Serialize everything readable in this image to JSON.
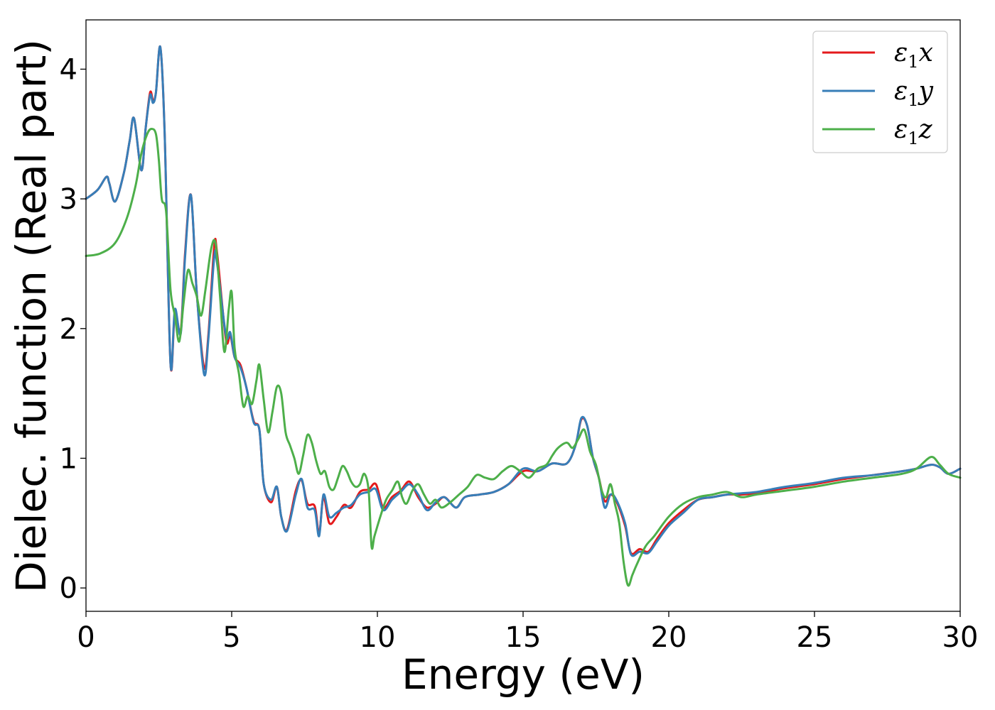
{
  "chart_data": {
    "type": "line",
    "xlabel": "Energy (eV)",
    "ylabel": "Dielec. function (Real part)",
    "xlim": [
      0,
      30
    ],
    "ylim": [
      -0.18,
      4.38
    ],
    "xticks": [
      0,
      5,
      10,
      15,
      20,
      25,
      30
    ],
    "yticks": [
      0,
      1,
      2,
      3,
      4
    ],
    "grid": false,
    "legend_position": "top-right",
    "series": [
      {
        "name": "ε₁x",
        "legend_symbol": "ε",
        "legend_sub": "1",
        "legend_var": "x",
        "color": "#e41a1c",
        "x": [
          0,
          0.4,
          0.7,
          0.8,
          1.0,
          1.3,
          1.5,
          1.65,
          1.9,
          2.05,
          2.2,
          2.3,
          2.4,
          2.55,
          2.7,
          2.9,
          3.05,
          3.25,
          3.4,
          3.6,
          3.8,
          4.05,
          4.2,
          4.4,
          4.5,
          4.8,
          4.95,
          5.1,
          5.3,
          5.5,
          5.75,
          5.95,
          6.1,
          6.35,
          6.55,
          6.7,
          6.9,
          7.2,
          7.4,
          7.6,
          7.85,
          8.0,
          8.15,
          8.35,
          8.6,
          8.85,
          9.1,
          9.4,
          9.7,
          9.95,
          10.2,
          10.5,
          10.8,
          11.1,
          11.4,
          11.7,
          12.0,
          12.3,
          12.7,
          13.0,
          13.5,
          14.0,
          14.5,
          15.0,
          15.5,
          16.0,
          16.5,
          16.8,
          17.0,
          17.2,
          17.4,
          17.6,
          17.8,
          18.0,
          18.2,
          18.5,
          18.7,
          19.0,
          19.3,
          19.6,
          20.0,
          20.5,
          21.0,
          21.5,
          22.0,
          22.5,
          23.0,
          23.5,
          24.0,
          25.0,
          26.0,
          27.0,
          28.0,
          28.5,
          29.0,
          29.3,
          29.6,
          30.0
        ],
        "y": [
          3.0,
          3.07,
          3.17,
          3.12,
          2.98,
          3.2,
          3.45,
          3.62,
          3.22,
          3.55,
          3.82,
          3.76,
          3.82,
          4.17,
          3.5,
          1.73,
          2.12,
          1.98,
          2.58,
          3.03,
          2.28,
          1.7,
          1.95,
          2.63,
          2.58,
          1.92,
          1.95,
          1.78,
          1.72,
          1.55,
          1.29,
          1.22,
          0.8,
          0.66,
          0.78,
          0.55,
          0.45,
          0.75,
          0.83,
          0.65,
          0.63,
          0.42,
          0.7,
          0.5,
          0.55,
          0.64,
          0.62,
          0.74,
          0.76,
          0.8,
          0.62,
          0.7,
          0.75,
          0.82,
          0.7,
          0.62,
          0.65,
          0.7,
          0.62,
          0.7,
          0.72,
          0.74,
          0.8,
          0.9,
          0.9,
          0.96,
          0.96,
          1.1,
          1.3,
          1.25,
          1.0,
          0.85,
          0.67,
          0.72,
          0.67,
          0.48,
          0.27,
          0.3,
          0.28,
          0.38,
          0.5,
          0.6,
          0.68,
          0.7,
          0.72,
          0.72,
          0.73,
          0.75,
          0.77,
          0.8,
          0.84,
          0.87,
          0.9,
          0.92,
          0.95,
          0.93,
          0.88,
          0.92
        ]
      },
      {
        "name": "ε₁y",
        "legend_symbol": "ε",
        "legend_sub": "1",
        "legend_var": "y",
        "color": "#377eb8",
        "x": [
          0,
          0.4,
          0.7,
          0.8,
          1.0,
          1.3,
          1.5,
          1.65,
          1.9,
          2.05,
          2.2,
          2.3,
          2.4,
          2.55,
          2.7,
          2.9,
          3.05,
          3.25,
          3.4,
          3.6,
          3.8,
          4.05,
          4.2,
          4.4,
          4.5,
          4.8,
          4.95,
          5.1,
          5.3,
          5.5,
          5.75,
          5.95,
          6.1,
          6.35,
          6.55,
          6.7,
          6.9,
          7.2,
          7.4,
          7.6,
          7.85,
          8.0,
          8.15,
          8.35,
          8.6,
          8.85,
          9.1,
          9.4,
          9.7,
          9.95,
          10.2,
          10.5,
          10.8,
          11.1,
          11.4,
          11.7,
          12.0,
          12.3,
          12.7,
          13.0,
          13.5,
          14.0,
          14.5,
          15.0,
          15.5,
          16.0,
          16.5,
          16.8,
          17.0,
          17.2,
          17.4,
          17.6,
          17.8,
          18.0,
          18.2,
          18.5,
          18.7,
          19.0,
          19.3,
          19.6,
          20.0,
          20.5,
          21.0,
          21.5,
          22.0,
          22.5,
          23.0,
          23.5,
          24.0,
          25.0,
          26.0,
          27.0,
          28.0,
          28.5,
          29.0,
          29.3,
          29.6,
          30.0
        ],
        "y": [
          3.0,
          3.07,
          3.17,
          3.12,
          2.98,
          3.2,
          3.45,
          3.62,
          3.22,
          3.55,
          3.8,
          3.74,
          3.82,
          4.17,
          3.5,
          1.73,
          2.15,
          1.96,
          2.55,
          3.03,
          2.28,
          1.65,
          1.92,
          2.55,
          2.5,
          1.95,
          1.97,
          1.78,
          1.7,
          1.55,
          1.28,
          1.22,
          0.8,
          0.68,
          0.78,
          0.55,
          0.44,
          0.72,
          0.84,
          0.62,
          0.6,
          0.4,
          0.72,
          0.55,
          0.58,
          0.62,
          0.64,
          0.72,
          0.74,
          0.76,
          0.6,
          0.68,
          0.74,
          0.8,
          0.72,
          0.6,
          0.66,
          0.7,
          0.62,
          0.7,
          0.72,
          0.74,
          0.8,
          0.92,
          0.9,
          0.96,
          0.96,
          1.1,
          1.31,
          1.25,
          1.0,
          0.85,
          0.62,
          0.72,
          0.68,
          0.5,
          0.26,
          0.28,
          0.27,
          0.36,
          0.48,
          0.58,
          0.68,
          0.7,
          0.72,
          0.73,
          0.74,
          0.76,
          0.78,
          0.81,
          0.85,
          0.87,
          0.9,
          0.92,
          0.95,
          0.93,
          0.88,
          0.92
        ]
      },
      {
        "name": "ε₁z",
        "legend_symbol": "ε",
        "legend_sub": "1",
        "legend_var": "z",
        "color": "#4daf4a",
        "x": [
          0,
          0.5,
          1.0,
          1.4,
          1.7,
          1.9,
          2.1,
          2.25,
          2.4,
          2.5,
          2.6,
          2.75,
          2.9,
          3.05,
          3.2,
          3.35,
          3.5,
          3.65,
          3.8,
          3.95,
          4.1,
          4.3,
          4.45,
          4.6,
          4.75,
          4.9,
          5.0,
          5.1,
          5.25,
          5.4,
          5.55,
          5.7,
          5.85,
          5.95,
          6.1,
          6.25,
          6.4,
          6.55,
          6.7,
          6.85,
          7.0,
          7.15,
          7.3,
          7.45,
          7.6,
          7.75,
          7.9,
          8.05,
          8.2,
          8.35,
          8.5,
          8.65,
          8.8,
          8.95,
          9.1,
          9.25,
          9.4,
          9.55,
          9.7,
          9.8,
          9.9,
          10.1,
          10.3,
          10.5,
          10.7,
          10.85,
          11.0,
          11.2,
          11.4,
          11.6,
          11.8,
          12.0,
          12.2,
          12.5,
          12.8,
          13.1,
          13.4,
          13.7,
          14.0,
          14.3,
          14.6,
          14.9,
          15.2,
          15.5,
          15.8,
          16.0,
          16.2,
          16.5,
          16.7,
          16.9,
          17.1,
          17.3,
          17.5,
          17.7,
          17.85,
          18.0,
          18.15,
          18.3,
          18.45,
          18.6,
          18.75,
          18.9,
          19.2,
          19.5,
          20.0,
          20.5,
          21.0,
          21.5,
          22.0,
          22.5,
          23.0,
          24.0,
          25.0,
          26.0,
          27.0,
          28.0,
          28.5,
          29.0,
          29.3,
          29.6,
          30.0
        ],
        "y": [
          2.56,
          2.58,
          2.66,
          2.85,
          3.1,
          3.35,
          3.5,
          3.54,
          3.5,
          3.3,
          3.0,
          2.9,
          2.3,
          2.1,
          1.9,
          2.2,
          2.45,
          2.35,
          2.25,
          2.1,
          2.3,
          2.62,
          2.65,
          2.25,
          1.82,
          2.15,
          2.28,
          1.85,
          1.65,
          1.4,
          1.48,
          1.42,
          1.6,
          1.72,
          1.45,
          1.2,
          1.36,
          1.55,
          1.5,
          1.2,
          1.1,
          1.0,
          0.88,
          1.02,
          1.18,
          1.12,
          0.98,
          0.88,
          0.9,
          0.78,
          0.76,
          0.85,
          0.94,
          0.9,
          0.82,
          0.78,
          0.8,
          0.88,
          0.75,
          0.32,
          0.4,
          0.55,
          0.68,
          0.75,
          0.82,
          0.7,
          0.65,
          0.75,
          0.8,
          0.72,
          0.65,
          0.68,
          0.62,
          0.66,
          0.72,
          0.78,
          0.87,
          0.85,
          0.84,
          0.9,
          0.94,
          0.9,
          0.85,
          0.92,
          0.95,
          1.02,
          1.08,
          1.12,
          1.08,
          1.15,
          1.22,
          1.05,
          0.95,
          0.75,
          0.7,
          0.8,
          0.65,
          0.5,
          0.2,
          0.02,
          0.1,
          0.18,
          0.32,
          0.4,
          0.55,
          0.65,
          0.7,
          0.72,
          0.74,
          0.7,
          0.72,
          0.75,
          0.78,
          0.82,
          0.85,
          0.88,
          0.92,
          1.01,
          0.95,
          0.88,
          0.85
        ]
      }
    ]
  }
}
